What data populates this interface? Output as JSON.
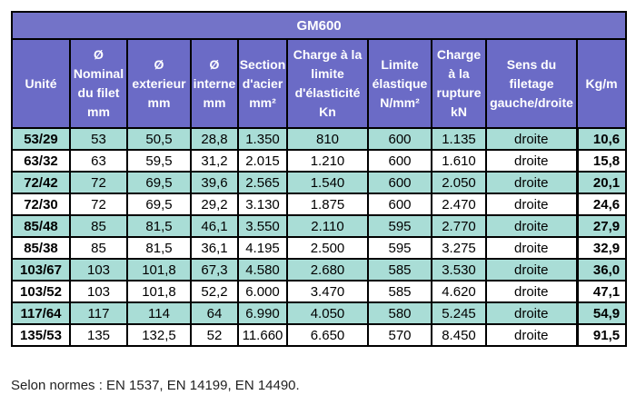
{
  "table": {
    "title": "GM600",
    "headers": [
      [
        "Unité"
      ],
      [
        "Ø",
        "Nominal",
        "du filet",
        "mm"
      ],
      [
        "Ø",
        "exterieur",
        "mm"
      ],
      [
        "Ø",
        "interne",
        "mm"
      ],
      [
        "Section",
        "d'acier",
        "mm²"
      ],
      [
        "Charge à la",
        "limite",
        "d'élasticité",
        "Kn"
      ],
      [
        "Limite",
        "élastique",
        "N/mm²"
      ],
      [
        "Charge",
        "à la",
        "rupture",
        "kN"
      ],
      [
        "Sens du",
        "filetage",
        "gauche/droite"
      ],
      [
        "Kg/m"
      ]
    ],
    "rows": [
      [
        "53/29",
        "53",
        "50,5",
        "28,8",
        "1.350",
        "810",
        "600",
        "1.135",
        "droite",
        "10,6"
      ],
      [
        "63/32",
        "63",
        "59,5",
        "31,2",
        "2.015",
        "1.210",
        "600",
        "1.610",
        "droite",
        "15,8"
      ],
      [
        "72/42",
        "72",
        "69,5",
        "39,6",
        "2.565",
        "1.540",
        "600",
        "2.050",
        "droite",
        "20,1"
      ],
      [
        "72/30",
        "72",
        "69,5",
        "29,2",
        "3.130",
        "1.875",
        "600",
        "2.470",
        "droite",
        "24,6"
      ],
      [
        "85/48",
        "85",
        "81,5",
        "46,1",
        "3.550",
        "2.110",
        "595",
        "2.770",
        "droite",
        "27,9"
      ],
      [
        "85/38",
        "85",
        "81,5",
        "36,1",
        "4.195",
        "2.500",
        "595",
        "3.275",
        "droite",
        "32,9"
      ],
      [
        "103/67",
        "103",
        "101,8",
        "67,3",
        "4.580",
        "2.680",
        "585",
        "3.530",
        "droite",
        "36,0"
      ],
      [
        "103/52",
        "103",
        "101,8",
        "52,2",
        "6.000",
        "3.470",
        "585",
        "4.620",
        "droite",
        "47,1"
      ],
      [
        "117/64",
        "117",
        "114",
        "64",
        "6.990",
        "4.050",
        "580",
        "5.245",
        "droite",
        "54,9"
      ],
      [
        "135/53",
        "135",
        "132,5",
        "52",
        "11.660",
        "6.650",
        "570",
        "8.450",
        "droite",
        "91,5"
      ]
    ]
  },
  "footer": "Selon normes : EN 1537, EN 14199, EN 14490.",
  "colors": {
    "header_bg": "#6b6bc6",
    "teal_row": "#a9ddd6",
    "white_row": "#ffffff"
  }
}
